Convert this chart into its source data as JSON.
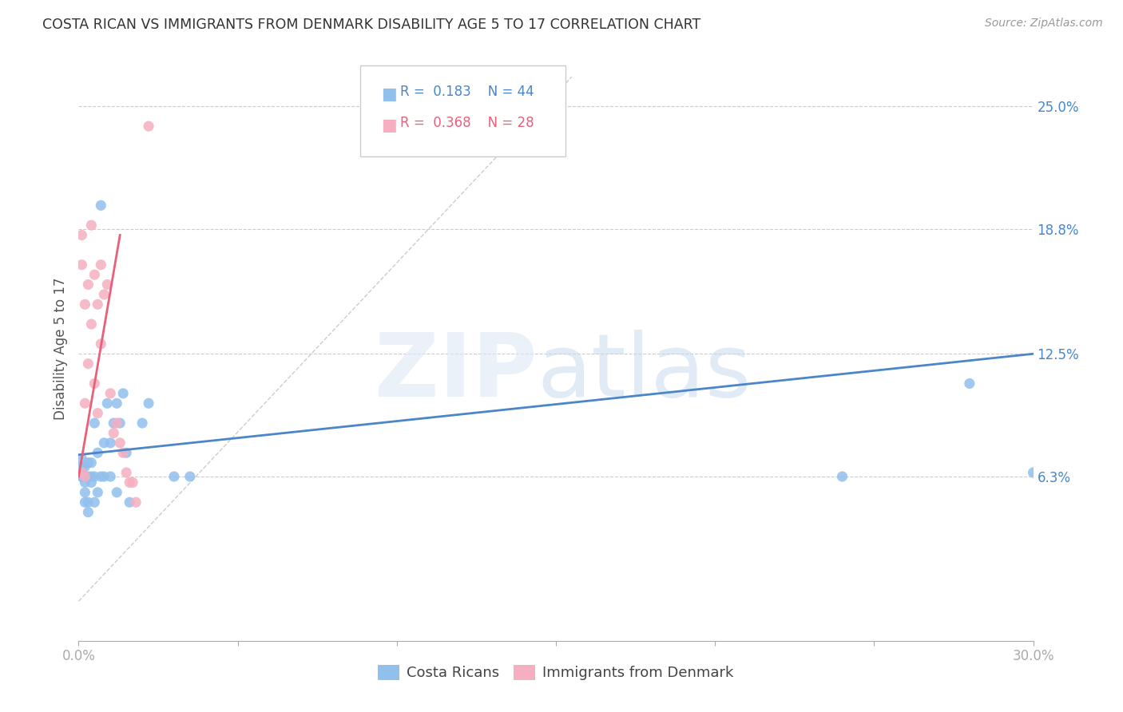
{
  "title": "COSTA RICAN VS IMMIGRANTS FROM DENMARK DISABILITY AGE 5 TO 17 CORRELATION CHART",
  "source": "Source: ZipAtlas.com",
  "ylabel": "Disability Age 5 to 17",
  "xlim": [
    0.0,
    0.3
  ],
  "ylim": [
    -0.02,
    0.275
  ],
  "ytick_labels": [
    "6.3%",
    "12.5%",
    "18.8%",
    "25.0%"
  ],
  "ytick_positions": [
    0.063,
    0.125,
    0.188,
    0.25
  ],
  "grid_color": "#cccccc",
  "background_color": "#ffffff",
  "legend_R1": "0.183",
  "legend_N1": "44",
  "legend_R2": "0.368",
  "legend_N2": "28",
  "blue_color": "#91c0ed",
  "pink_color": "#f5afc0",
  "blue_line_color": "#4a86c8",
  "pink_line_color": "#e8607a",
  "diagonal_color": "#cccccc",
  "costa_rican_x": [
    0.001,
    0.001,
    0.001,
    0.001,
    0.001,
    0.002,
    0.002,
    0.002,
    0.002,
    0.002,
    0.002,
    0.003,
    0.003,
    0.003,
    0.003,
    0.004,
    0.004,
    0.004,
    0.005,
    0.005,
    0.005,
    0.006,
    0.006,
    0.007,
    0.007,
    0.008,
    0.008,
    0.009,
    0.01,
    0.01,
    0.011,
    0.012,
    0.012,
    0.013,
    0.014,
    0.015,
    0.016,
    0.02,
    0.022,
    0.03,
    0.035,
    0.24,
    0.28,
    0.3
  ],
  "costa_rican_y": [
    0.063,
    0.063,
    0.065,
    0.068,
    0.072,
    0.05,
    0.055,
    0.06,
    0.063,
    0.063,
    0.068,
    0.045,
    0.05,
    0.063,
    0.07,
    0.06,
    0.063,
    0.07,
    0.05,
    0.063,
    0.09,
    0.055,
    0.075,
    0.063,
    0.2,
    0.063,
    0.08,
    0.1,
    0.063,
    0.08,
    0.09,
    0.055,
    0.1,
    0.09,
    0.105,
    0.075,
    0.05,
    0.09,
    0.1,
    0.063,
    0.063,
    0.063,
    0.11,
    0.065
  ],
  "denmark_x": [
    0.001,
    0.001,
    0.001,
    0.002,
    0.002,
    0.002,
    0.003,
    0.003,
    0.004,
    0.004,
    0.005,
    0.005,
    0.006,
    0.006,
    0.007,
    0.007,
    0.008,
    0.009,
    0.01,
    0.011,
    0.012,
    0.013,
    0.014,
    0.015,
    0.016,
    0.017,
    0.018,
    0.022
  ],
  "denmark_y": [
    0.065,
    0.17,
    0.185,
    0.063,
    0.1,
    0.15,
    0.12,
    0.16,
    0.14,
    0.19,
    0.11,
    0.165,
    0.095,
    0.15,
    0.13,
    0.17,
    0.155,
    0.16,
    0.105,
    0.085,
    0.09,
    0.08,
    0.075,
    0.065,
    0.06,
    0.06,
    0.05,
    0.24
  ],
  "blue_line_x": [
    0.0,
    0.3
  ],
  "blue_line_y": [
    0.074,
    0.125
  ],
  "pink_line_x": [
    0.0,
    0.013
  ],
  "pink_line_y": [
    0.063,
    0.185
  ]
}
